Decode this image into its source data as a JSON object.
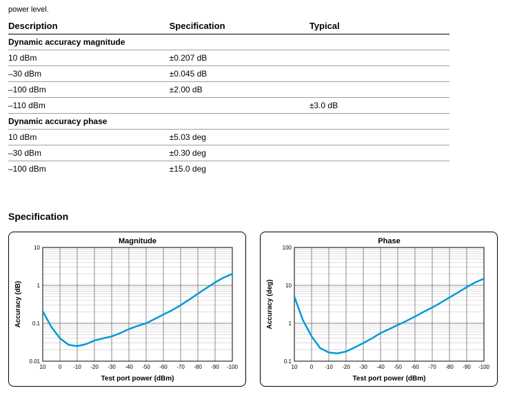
{
  "truncated_text": "power level.",
  "table": {
    "headers": [
      "Description",
      "Specification",
      "Typical"
    ],
    "sections": [
      {
        "title": "Dynamic accuracy magnitude",
        "rows": [
          [
            "10 dBm",
            "±0.207 dB",
            ""
          ],
          [
            "–30 dBm",
            "±0.045 dB",
            ""
          ],
          [
            "–100 dBm",
            "±2.00 dB",
            ""
          ],
          [
            "–110 dBm",
            "",
            "±3.0 dB"
          ]
        ]
      },
      {
        "title": "Dynamic accuracy phase",
        "rows": [
          [
            "10 dBm",
            "±5.03 deg",
            ""
          ],
          [
            "–30 dBm",
            "±0.30 deg",
            ""
          ],
          [
            "–100 dBm",
            "±15.0 deg",
            ""
          ]
        ]
      }
    ]
  },
  "section_title": "Specification",
  "charts": {
    "magnitude": {
      "title": "Magnitude",
      "ylabel": "Accuracy (dB)",
      "xlabel": "Test port power (dBm)",
      "title_fontsize": 11,
      "label_fontsize": 10,
      "tick_fontsize": 8,
      "line_color": "#0099d8",
      "line_width": 2.5,
      "grid_color_major": "#5a5a5a",
      "grid_color_minor": "#bdbdbd",
      "background": "#ffffff",
      "xmin": 10,
      "xmax": -100,
      "xstep": -10,
      "ymin": 0.01,
      "ymax": 10,
      "yticks": [
        0.01,
        0.1,
        1,
        10
      ],
      "ytick_labels": [
        "0.01",
        "0.1",
        "1",
        "10"
      ],
      "series": [
        {
          "x": 10,
          "y": 0.207
        },
        {
          "x": 5,
          "y": 0.08
        },
        {
          "x": 0,
          "y": 0.04
        },
        {
          "x": -5,
          "y": 0.027
        },
        {
          "x": -10,
          "y": 0.025
        },
        {
          "x": -15,
          "y": 0.028
        },
        {
          "x": -20,
          "y": 0.035
        },
        {
          "x": -25,
          "y": 0.04
        },
        {
          "x": -30,
          "y": 0.045
        },
        {
          "x": -35,
          "y": 0.055
        },
        {
          "x": -40,
          "y": 0.07
        },
        {
          "x": -45,
          "y": 0.085
        },
        {
          "x": -50,
          "y": 0.1
        },
        {
          "x": -55,
          "y": 0.13
        },
        {
          "x": -60,
          "y": 0.17
        },
        {
          "x": -65,
          "y": 0.22
        },
        {
          "x": -70,
          "y": 0.3
        },
        {
          "x": -75,
          "y": 0.42
        },
        {
          "x": -80,
          "y": 0.6
        },
        {
          "x": -85,
          "y": 0.85
        },
        {
          "x": -90,
          "y": 1.2
        },
        {
          "x": -95,
          "y": 1.6
        },
        {
          "x": -100,
          "y": 2.0
        }
      ]
    },
    "phase": {
      "title": "Phase",
      "ylabel": "Accuracy (deg)",
      "xlabel": "Test port power (dBm)",
      "title_fontsize": 11,
      "label_fontsize": 10,
      "tick_fontsize": 8,
      "line_color": "#0099d8",
      "line_width": 2.5,
      "grid_color_major": "#5a5a5a",
      "grid_color_minor": "#bdbdbd",
      "background": "#ffffff",
      "xmin": 10,
      "xmax": -100,
      "xstep": -10,
      "ymin": 0.1,
      "ymax": 100,
      "yticks": [
        0.1,
        1,
        10,
        100
      ],
      "ytick_labels": [
        "0.1",
        "1",
        "10",
        "100"
      ],
      "series": [
        {
          "x": 10,
          "y": 5.03
        },
        {
          "x": 5,
          "y": 1.2
        },
        {
          "x": 0,
          "y": 0.45
        },
        {
          "x": -5,
          "y": 0.22
        },
        {
          "x": -10,
          "y": 0.17
        },
        {
          "x": -15,
          "y": 0.16
        },
        {
          "x": -20,
          "y": 0.18
        },
        {
          "x": -25,
          "y": 0.23
        },
        {
          "x": -30,
          "y": 0.3
        },
        {
          "x": -35,
          "y": 0.4
        },
        {
          "x": -40,
          "y": 0.55
        },
        {
          "x": -45,
          "y": 0.7
        },
        {
          "x": -50,
          "y": 0.9
        },
        {
          "x": -55,
          "y": 1.15
        },
        {
          "x": -60,
          "y": 1.5
        },
        {
          "x": -65,
          "y": 2.0
        },
        {
          "x": -70,
          "y": 2.6
        },
        {
          "x": -75,
          "y": 3.5
        },
        {
          "x": -80,
          "y": 4.8
        },
        {
          "x": -85,
          "y": 6.5
        },
        {
          "x": -90,
          "y": 9.0
        },
        {
          "x": -95,
          "y": 12.0
        },
        {
          "x": -100,
          "y": 15.0
        }
      ]
    }
  }
}
